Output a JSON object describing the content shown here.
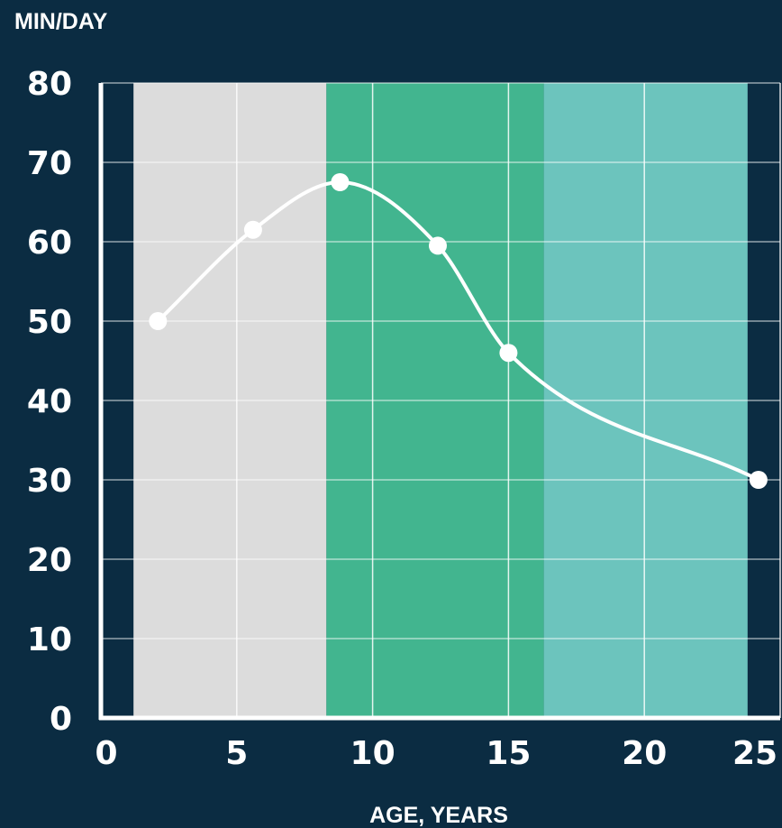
{
  "chart_data": {
    "type": "line",
    "ylabel": "MIN/DAY",
    "xlabel": "AGE, YEARS",
    "xlim": [
      0,
      25
    ],
    "ylim": [
      0,
      80
    ],
    "xticks": [
      0,
      5,
      10,
      15,
      20,
      25
    ],
    "yticks": [
      0,
      10,
      20,
      30,
      40,
      50,
      60,
      70,
      80
    ],
    "grid": true,
    "colors": {
      "background": "#0b2c42",
      "line": "#ffffff",
      "band_1": "#dcdcdc",
      "band_2": "#42b58f",
      "band_3": "#6cc4bd"
    },
    "bands": [
      {
        "x0": 1.2,
        "x1": 8.3,
        "color": "#dcdcdc"
      },
      {
        "x0": 8.3,
        "x1": 16.3,
        "color": "#42b58f"
      },
      {
        "x0": 16.3,
        "x1": 23.8,
        "color": "#6cc4bd"
      }
    ],
    "series": [
      {
        "x": [
          2.1,
          5.6,
          8.8,
          12.4,
          15.0,
          24.2
        ],
        "y": [
          50,
          61.5,
          67.5,
          59.5,
          46,
          30
        ]
      }
    ]
  }
}
